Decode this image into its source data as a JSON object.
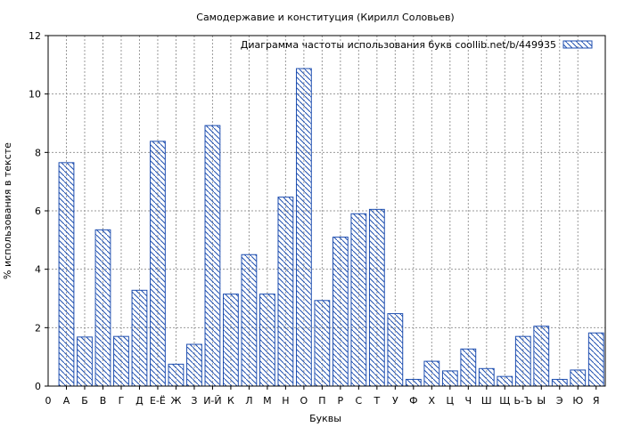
{
  "chart_data": {
    "type": "bar",
    "title": "Самодержавие и конституция (Кирилл Соловьев)",
    "xlabel": "Буквы",
    "ylabel": "% использования в тексте",
    "ylim": [
      0,
      12
    ],
    "yticks": [
      "0",
      "2",
      "4",
      "6",
      "8",
      "10",
      "12"
    ],
    "x_start_label": "0",
    "categories": [
      "А",
      "Б",
      "В",
      "Г",
      "Д",
      "Е-Ё",
      "Ж",
      "З",
      "И-Й",
      "К",
      "Л",
      "М",
      "Н",
      "О",
      "П",
      "Р",
      "С",
      "Т",
      "У",
      "Ф",
      "Х",
      "Ц",
      "Ч",
      "Ш",
      "Щ",
      "Ь-Ъ",
      "Ы",
      "Э",
      "Ю",
      "Я"
    ],
    "series": [
      {
        "name": "Диаграмма частоты использования букв  coollib.net/b/449935",
        "values": [
          7.65,
          1.68,
          5.35,
          1.7,
          3.28,
          8.38,
          0.75,
          1.43,
          8.92,
          3.15,
          4.5,
          3.15,
          6.47,
          10.87,
          2.93,
          5.1,
          5.9,
          6.05,
          2.48,
          0.23,
          0.85,
          0.52,
          1.27,
          0.6,
          0.33,
          1.7,
          2.05,
          0.23,
          0.55,
          1.82
        ]
      }
    ],
    "grid": true,
    "legend_position": "top-right",
    "bar_color": "#1f4fb0"
  }
}
